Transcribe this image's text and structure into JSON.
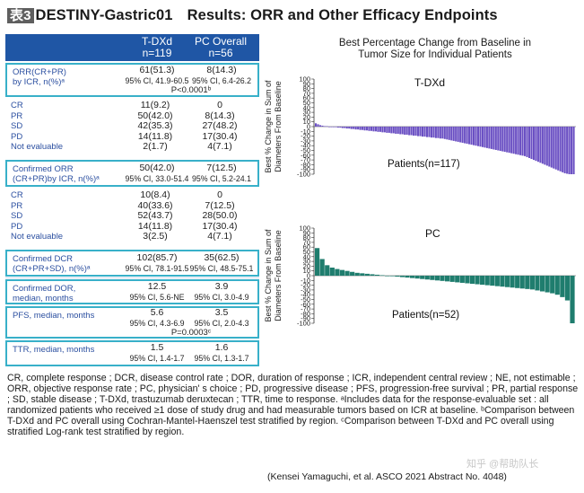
{
  "title": {
    "tag": "表3",
    "name": "DESTINY-Gastric01",
    "subtitle": "Results: ORR and Other Efficacy Endpoints"
  },
  "table": {
    "col1_header": [
      "T-DXd",
      "n=119"
    ],
    "col2_header": [
      "PC Overall",
      "n=56"
    ],
    "orr": {
      "label": [
        "ORR(CR+PR)",
        "by ICR, n(%)ᵃ"
      ],
      "v1": [
        "61(51.3)",
        "95% CI, 41.9-60.5"
      ],
      "v2": [
        "8(14.3)",
        "95% CI, 6.4-26.2"
      ],
      "p": "P<0.0001ᵇ"
    },
    "resp1": {
      "labels": [
        "CR",
        "PR",
        "SD",
        "PD",
        "Not evaluable"
      ],
      "v1": [
        "11(9.2)",
        "50(42.0)",
        "42(35.3)",
        "14(11.8)",
        "2(1.7)"
      ],
      "v2": [
        "0",
        "8(14.3)",
        "27(48.2)",
        "17(30.4)",
        "4(7.1)"
      ]
    },
    "corr": {
      "label": [
        "Confirmed ORR",
        "(CR+PR)by ICR, n(%)ᵃ"
      ],
      "v1": [
        "50(42.0)",
        "95% CI, 33.0-51.4"
      ],
      "v2": [
        "7(12.5)",
        "95% CI, 5.2-24.1"
      ]
    },
    "resp2": {
      "labels": [
        "CR",
        "PR",
        "SD",
        "PD",
        "Not evaluable"
      ],
      "v1": [
        "10(8.4)",
        "40(33.6)",
        "52(43.7)",
        "14(11.8)",
        "3(2.5)"
      ],
      "v2": [
        "0",
        "7(12.5)",
        "28(50.0)",
        "17(30.4)",
        "4(7.1)"
      ]
    },
    "cdcr": {
      "label": [
        "Confirmed DCR",
        "(CR+PR+SD), n(%)ᵃ"
      ],
      "v1": [
        "102(85.7)",
        "95% CI, 78.1-91.5"
      ],
      "v2": [
        "35(62.5)",
        "95% CI, 48.5-75.1"
      ]
    },
    "dor": {
      "label": [
        "Confirmed DOR,",
        "median, months"
      ],
      "v1": [
        "12.5",
        "95% CI, 5.6-NE"
      ],
      "v2": [
        "3.9",
        "95% CI, 3.0-4.9"
      ]
    },
    "pfs": {
      "label": [
        "PFS, median, months"
      ],
      "v1": [
        "5.6",
        "95% CI, 4.3-6.9"
      ],
      "v2": [
        "3.5",
        "95% CI, 2.0-4.3"
      ],
      "p": "P=0.0003ᶜ"
    },
    "ttr": {
      "label": [
        "TTR, median, months"
      ],
      "v1": [
        "1.5",
        "95% CI, 1.4-1.7"
      ],
      "v2": [
        "1.6",
        "95% CI, 1.3-1.7"
      ]
    }
  },
  "chart_title": [
    "Best Percentage Change from Baseline in",
    "Tumor Size for Individual Patients"
  ],
  "chart_data": [
    {
      "type": "bar",
      "label": "T-DXd",
      "patients_label": "Patients(n=117)",
      "ylabel": [
        "Best % Change in Sum of",
        "Diameters From Baseline"
      ],
      "ylim": [
        -100,
        100
      ],
      "yticks": [
        100,
        90,
        80,
        70,
        60,
        50,
        40,
        30,
        20,
        10,
        0,
        -10,
        -20,
        -30,
        -40,
        -50,
        -60,
        -70,
        -80,
        -90,
        -100
      ],
      "n": 117,
      "color": "#6a4fc3",
      "values": [
        7,
        5,
        3,
        2,
        1,
        1,
        0,
        0,
        -1,
        -1,
        -2,
        -2,
        -3,
        -3,
        -4,
        -4,
        -5,
        -5,
        -6,
        -6,
        -7,
        -7,
        -8,
        -8,
        -9,
        -9,
        -10,
        -10,
        -11,
        -11,
        -12,
        -12,
        -13,
        -13,
        -14,
        -14,
        -15,
        -15,
        -16,
        -16,
        -17,
        -17,
        -18,
        -18,
        -19,
        -19,
        -20,
        -20,
        -21,
        -21,
        -22,
        -22,
        -23,
        -23,
        -24,
        -24,
        -25,
        -25,
        -26,
        -27,
        -28,
        -29,
        -30,
        -31,
        -32,
        -33,
        -34,
        -35,
        -36,
        -37,
        -38,
        -39,
        -40,
        -41,
        -42,
        -43,
        -44,
        -45,
        -46,
        -47,
        -48,
        -49,
        -50,
        -51,
        -52,
        -53,
        -54,
        -55,
        -56,
        -57,
        -58,
        -59,
        -60,
        -61,
        -62,
        -64,
        -66,
        -68,
        -70,
        -72,
        -74,
        -76,
        -78,
        -80,
        -82,
        -84,
        -86,
        -88,
        -90,
        -92,
        -94,
        -96,
        -98,
        -99,
        -100,
        -100,
        -100
      ]
    },
    {
      "type": "bar",
      "label": "PC",
      "patients_label": "Patients(n=52)",
      "ylabel": [
        "Best % Change in Sum of",
        "Diameters From Baseline"
      ],
      "ylim": [
        -100,
        100
      ],
      "yticks": [
        100,
        90,
        80,
        70,
        60,
        50,
        40,
        30,
        20,
        10,
        0,
        -10,
        -20,
        -30,
        -40,
        -50,
        -60,
        -70,
        -80,
        -90,
        -100
      ],
      "n": 52,
      "color": "#1f7d6e",
      "values": [
        58,
        35,
        22,
        17,
        14,
        12,
        10,
        8,
        6,
        5,
        4,
        3,
        2,
        1,
        0,
        -1,
        -2,
        -3,
        -4,
        -5,
        -6,
        -7,
        -8,
        -9,
        -10,
        -11,
        -12,
        -13,
        -14,
        -15,
        -16,
        -17,
        -18,
        -19,
        -20,
        -21,
        -22,
        -23,
        -24,
        -25,
        -26,
        -27,
        -28,
        -29,
        -31,
        -33,
        -35,
        -37,
        -40,
        -45,
        -52,
        -100
      ]
    }
  ],
  "footnote": "CR, complete response ; DCR, disease control rate ; DOR, duration of response ; ICR, independent central review ; NE, not estimable ; ORR, objective response rate ; PC, physician' s choice ; PD, progressive disease ; PFS, progression-free survival ; PR, partial response ; SD, stable disease ; T-DXd, trastuzumab deruxtecan ; TTR, time to response. ᵃIncludes data for the response-evaluable set : all randomized patients who received ≥1 dose of study drug and had measurable tumors based on ICR at baseline. ᵇComparison between T-DXd and PC overall using Cochran-Mantel-Haenszel test stratified by region. ᶜComparison between T-DXd and PC overall using stratified Log-rank test stratified by region.",
  "citation": "(Kensei Yamaguchi, et al. ASCO 2021  Abstract No. 4048)",
  "watermark": "知乎 @帮助队长"
}
